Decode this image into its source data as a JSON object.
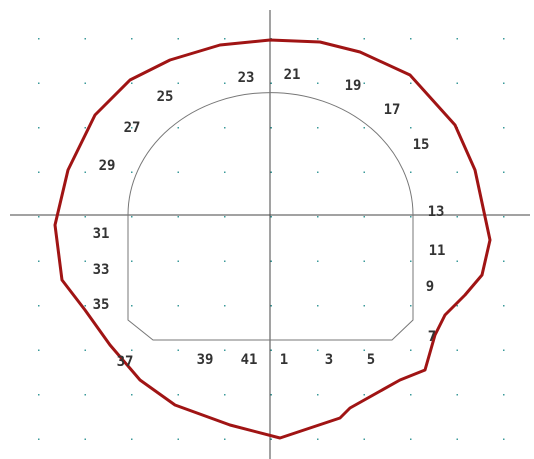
{
  "labels": [
    "1",
    "3",
    "5",
    "7",
    "9",
    "11",
    "13",
    "15",
    "17",
    "19",
    "21",
    "23",
    "25",
    "27",
    "29",
    "31",
    "33",
    "35",
    "37",
    "39",
    "41"
  ]
}
